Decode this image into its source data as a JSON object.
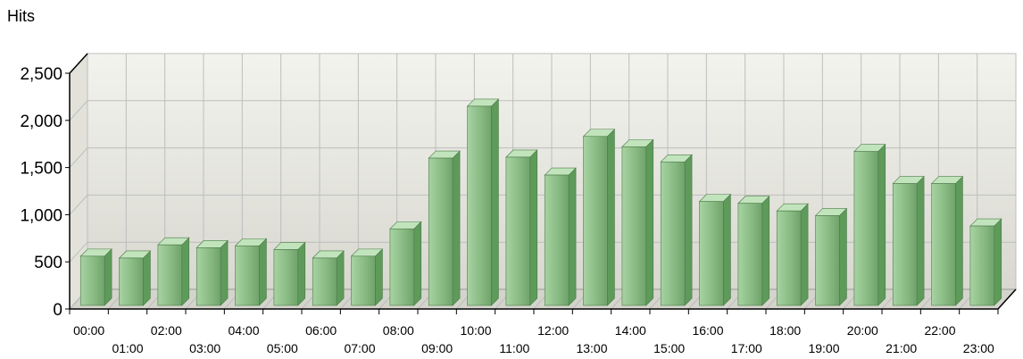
{
  "chart_data": {
    "type": "bar",
    "ylabel": "Hits",
    "ylim": [
      0,
      2500
    ],
    "yticks": [
      "0",
      "500",
      "1,000",
      "1,500",
      "2,000",
      "2,500"
    ],
    "yticks_values": [
      0,
      500,
      1000,
      1500,
      2000,
      2500
    ],
    "categories": [
      "00:00",
      "01:00",
      "02:00",
      "03:00",
      "04:00",
      "05:00",
      "06:00",
      "07:00",
      "08:00",
      "09:00",
      "10:00",
      "11:00",
      "12:00",
      "13:00",
      "14:00",
      "15:00",
      "16:00",
      "17:00",
      "18:00",
      "19:00",
      "20:00",
      "21:00",
      "22:00",
      "23:00"
    ],
    "values": [
      560,
      540,
      680,
      650,
      670,
      630,
      540,
      560,
      850,
      1600,
      2150,
      1610,
      1420,
      1830,
      1720,
      1560,
      1140,
      1120,
      1040,
      990,
      1670,
      1330,
      1330,
      880
    ],
    "grid": true,
    "legend": "none",
    "style": "3d",
    "colors": {
      "bar_front": "#8fbf8a",
      "bar_side": "#5e9a5a",
      "bar_top": "#c2e4bd",
      "wall": "#ebebe3",
      "grid": "#bdbdbd"
    }
  }
}
